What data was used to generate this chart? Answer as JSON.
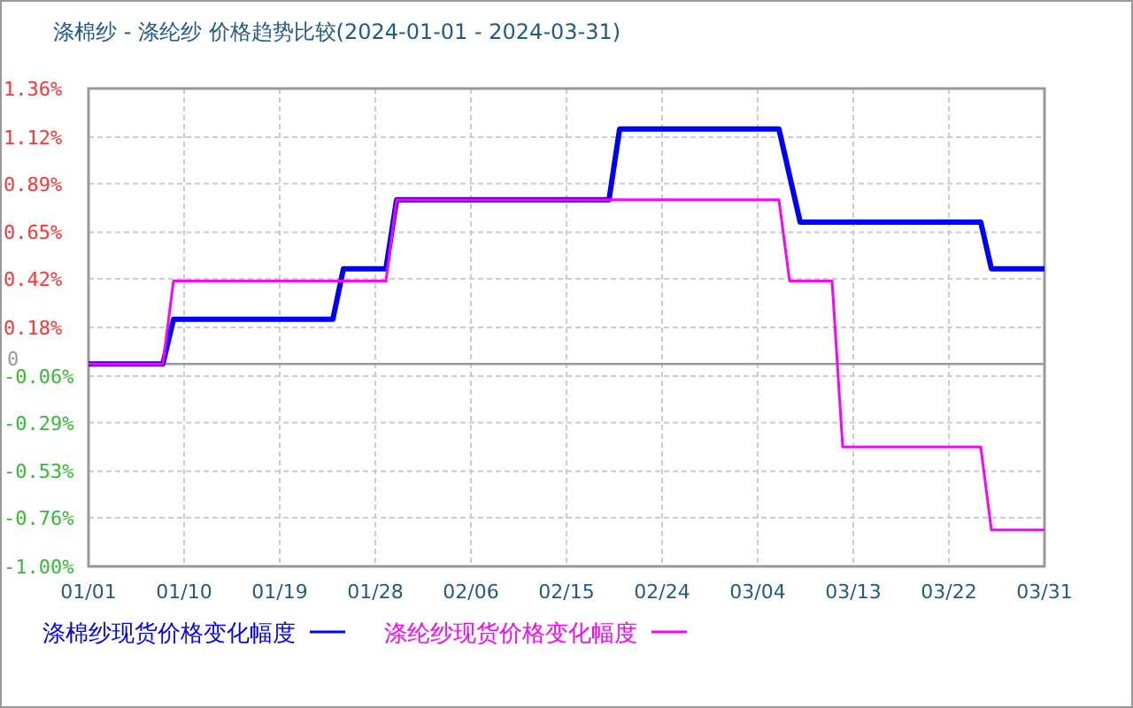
{
  "chart_data": {
    "type": "line",
    "title": "涤棉纱 - 涤纶纱 价格趋势比较(2024-01-01 - 2024-03-31)",
    "xlim": [
      "2024-01-01",
      "2024-03-31"
    ],
    "xticks": [
      {
        "value": "2024-01-01",
        "label": "01/01"
      },
      {
        "value": "2024-01-10",
        "label": "01/10"
      },
      {
        "value": "2024-01-19",
        "label": "01/19"
      },
      {
        "value": "2024-01-28",
        "label": "01/28"
      },
      {
        "value": "2024-02-06",
        "label": "02/06"
      },
      {
        "value": "2024-02-15",
        "label": "02/15"
      },
      {
        "value": "2024-02-24",
        "label": "02/24"
      },
      {
        "value": "2024-03-04",
        "label": "03/04"
      },
      {
        "value": "2024-03-13",
        "label": "03/13"
      },
      {
        "value": "2024-03-22",
        "label": "03/22"
      },
      {
        "value": "2024-03-31",
        "label": "03/31"
      }
    ],
    "ylim": [
      -1.0,
      1.36
    ],
    "yticks": [
      {
        "value": 1.36,
        "label": "1.36%"
      },
      {
        "value": 1.12,
        "label": "1.12%"
      },
      {
        "value": 0.89,
        "label": "0.89%"
      },
      {
        "value": 0.65,
        "label": "0.65%"
      },
      {
        "value": 0.42,
        "label": "0.42%"
      },
      {
        "value": 0.18,
        "label": "0.18%"
      },
      {
        "value": 0,
        "label": "0"
      },
      {
        "value": -0.06,
        "label": "-0.06%"
      },
      {
        "value": -0.29,
        "label": "-0.29%"
      },
      {
        "value": -0.53,
        "label": "-0.53%"
      },
      {
        "value": -0.76,
        "label": "-0.76%"
      },
      {
        "value": -1.0,
        "label": "-1.00%"
      }
    ],
    "grid": true,
    "legend": "bottom",
    "ref_lines": [
      {
        "axis": "y",
        "value": 0,
        "color": "#999999"
      }
    ],
    "series": [
      {
        "name": "涤棉纱现货价格变化幅度",
        "color": "#0000ff",
        "x": [
          "2024-01-01",
          "2024-01-08",
          "2024-01-09",
          "2024-01-24",
          "2024-01-25",
          "2024-01-29",
          "2024-01-30",
          "2024-02-19",
          "2024-02-20",
          "2024-03-06",
          "2024-03-08",
          "2024-03-25",
          "2024-03-26",
          "2024-03-31"
        ],
        "values": [
          0,
          0,
          0.22,
          0.22,
          0.47,
          0.47,
          0.81,
          0.81,
          1.16,
          1.16,
          0.7,
          0.7,
          0.47,
          0.47
        ]
      },
      {
        "name": "涤纶纱现货价格变化幅度",
        "color": "#ff00ff",
        "x": [
          "2024-01-01",
          "2024-01-08",
          "2024-01-09",
          "2024-01-29",
          "2024-01-30",
          "2024-03-06",
          "2024-03-07",
          "2024-03-11",
          "2024-03-12",
          "2024-03-25",
          "2024-03-26",
          "2024-03-31"
        ],
        "values": [
          0,
          0,
          0.41,
          0.41,
          0.81,
          0.81,
          0.41,
          0.41,
          -0.41,
          -0.41,
          -0.82,
          -0.82
        ]
      }
    ]
  }
}
